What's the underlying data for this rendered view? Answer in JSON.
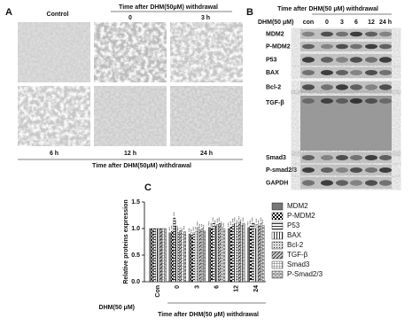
{
  "panel_a": {
    "label": "A",
    "control": "Control",
    "time_header": "Time after DHM(50μM) withdrawal",
    "top_times": [
      "0",
      "3 h"
    ],
    "bottom_times": [
      "6 h",
      "12 h",
      "24 h"
    ],
    "footer": "Time after DHM(50μM) withdrawal"
  },
  "panel_b": {
    "label": "B",
    "header": "Time after DHM(50 μM) withdrawal",
    "row_header": "DHM(50 μM)",
    "columns": [
      "con",
      "0",
      "3",
      "6",
      "12",
      "24 h"
    ],
    "proteins": [
      "MDM2",
      "P-MDM2",
      "P53",
      "BAX",
      "Bcl-2",
      "TGF-β",
      "Smad3",
      "P-smad2/3",
      "GAPDH"
    ]
  },
  "chart_data": {
    "type": "bar",
    "panel_label": "C",
    "y_label": "Relative proteins expression",
    "categories": [
      "Con",
      "0",
      "3",
      "6",
      "12",
      "24"
    ],
    "x_prefix_label": "DHM(50 μM)",
    "x_label": "Time after DHM(50 μM) withdrawal",
    "ylim": [
      0,
      1.5
    ],
    "yticks": [
      {
        "value": 0,
        "label": "0.0"
      },
      {
        "value": 0.5,
        "label": "0.5"
      },
      {
        "value": 1,
        "label": "1.0"
      },
      {
        "value": 1.5,
        "label": "1.5"
      }
    ],
    "series": [
      {
        "name": "MDM2",
        "pattern": "solid",
        "values": [
          1.0,
          0.92,
          0.9,
          1.02,
          1.0,
          1.02
        ],
        "significance": [
          null,
          "***",
          "***",
          "***",
          "***",
          "***"
        ]
      },
      {
        "name": "P-MDM2",
        "pattern": "checker",
        "values": [
          1.0,
          0.95,
          0.88,
          1.0,
          1.03,
          1.05
        ],
        "significance": [
          null,
          "***",
          "***",
          "***",
          "***",
          "***"
        ]
      },
      {
        "name": "P53",
        "pattern": "horizontal",
        "values": [
          1.0,
          1.2,
          0.92,
          1.1,
          1.08,
          1.1
        ],
        "significance": [
          null,
          "***",
          "***",
          "***",
          "***",
          "***"
        ]
      },
      {
        "name": "BAX",
        "pattern": "vertical",
        "values": [
          1.0,
          1.05,
          0.95,
          1.05,
          1.1,
          1.0
        ],
        "significance": [
          null,
          "***",
          "**",
          "***",
          "***",
          "***"
        ]
      },
      {
        "name": "Bcl-2",
        "pattern": "dots",
        "values": [
          1.0,
          0.93,
          1.02,
          1.08,
          1.05,
          1.08
        ],
        "significance": [
          null,
          "**",
          "***",
          "***",
          "***",
          "***"
        ]
      },
      {
        "name": "TGF-β",
        "pattern": "diagonal",
        "values": [
          1.0,
          0.96,
          0.98,
          1.1,
          1.12,
          1.05
        ],
        "significance": [
          null,
          "*",
          "***",
          "***",
          "***",
          "***"
        ]
      },
      {
        "name": "Smad3",
        "pattern": "grid",
        "values": [
          1.0,
          0.9,
          1.0,
          1.02,
          1.06,
          1.1
        ],
        "significance": [
          null,
          "***",
          "**",
          "***",
          "***",
          "***"
        ]
      },
      {
        "name": "P-Smad2/3",
        "pattern": "bricks",
        "values": [
          1.0,
          0.94,
          0.96,
          1.0,
          1.1,
          1.06
        ],
        "significance": [
          null,
          "***",
          "***",
          "***",
          "***",
          "***"
        ]
      }
    ]
  }
}
